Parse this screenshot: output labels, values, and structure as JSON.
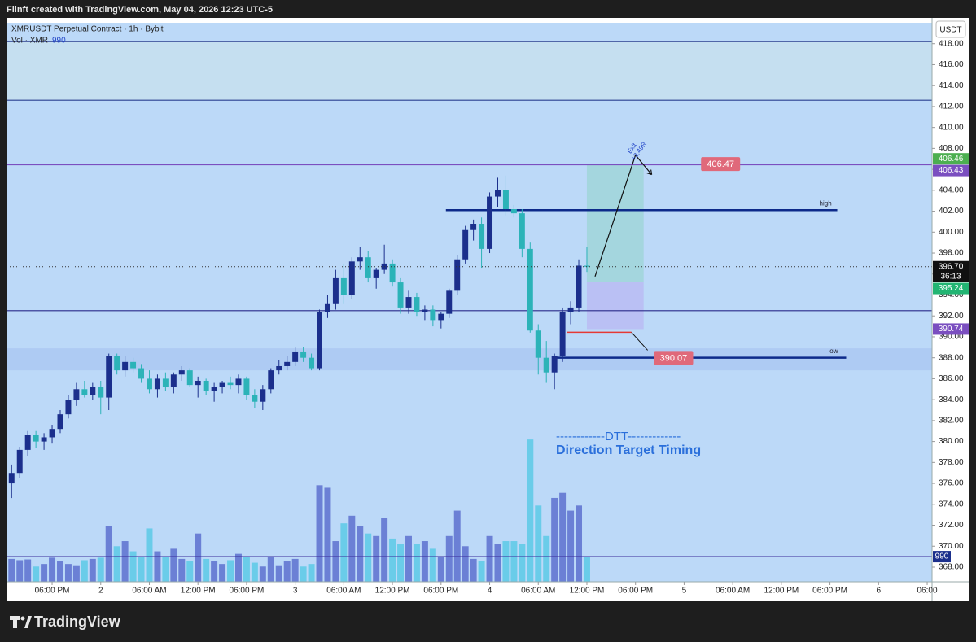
{
  "chart_data": {
    "type": "candlestick",
    "header": "Filnft created with TradingView.com, May 04, 2026 12:23 UTC-5",
    "symbol": "XMRUSDT Perpetual Contract · 1h · Bybit",
    "volume_name": "Vol · XMR",
    "volume_value": "990",
    "currency": "USDT",
    "brand": "TradingView",
    "text_lines": [
      "------------DTT-------------",
      "Direction Target Timing"
    ],
    "up_color": "#1b2f8c",
    "down_color": "#2cb3b8",
    "volume_up_color": "#5d70cf",
    "volume_down_color": "#5cc9e6",
    "xlim": [
      -5.63,
      108.6
    ],
    "ylim": [
      366.6,
      420.0
    ],
    "volume_lim": [
      0,
      22000
    ],
    "grid": false,
    "xticks": [
      {
        "value": 0,
        "label": "06:00 PM"
      },
      {
        "value": 6,
        "label": "2"
      },
      {
        "value": 12,
        "label": "06:00 AM"
      },
      {
        "value": 18,
        "label": "12:00 PM"
      },
      {
        "value": 24,
        "label": "06:00 PM"
      },
      {
        "value": 30,
        "label": "3"
      },
      {
        "value": 36,
        "label": "06:00 AM"
      },
      {
        "value": 42,
        "label": "12:00 PM"
      },
      {
        "value": 48,
        "label": "06:00 PM"
      },
      {
        "value": 54,
        "label": "4"
      },
      {
        "value": 60,
        "label": "06:00 AM"
      },
      {
        "value": 66,
        "label": "12:00 PM"
      },
      {
        "value": 72,
        "label": "06:00 PM"
      },
      {
        "value": 78,
        "label": "5"
      },
      {
        "value": 84,
        "label": "06:00 AM"
      },
      {
        "value": 90,
        "label": "12:00 PM"
      },
      {
        "value": 96,
        "label": "06:00 PM"
      },
      {
        "value": 102,
        "label": "6"
      },
      {
        "value": 108,
        "label": "06:00"
      }
    ],
    "yticks": [
      {
        "value": 368,
        "label": "368.00"
      },
      {
        "value": 370,
        "label": "370.00"
      },
      {
        "value": 372,
        "label": "372.00"
      },
      {
        "value": 374,
        "label": "374.00"
      },
      {
        "value": 376,
        "label": "376.00"
      },
      {
        "value": 378,
        "label": "378.00"
      },
      {
        "value": 380,
        "label": "380.00"
      },
      {
        "value": 382,
        "label": "382.00"
      },
      {
        "value": 384,
        "label": "384.00"
      },
      {
        "value": 386,
        "label": "386.00"
      },
      {
        "value": 388,
        "label": "388.00"
      },
      {
        "value": 390,
        "label": "390.00"
      },
      {
        "value": 392,
        "label": "392.00"
      },
      {
        "value": 394,
        "label": "394.00"
      },
      {
        "value": 396,
        "label": "396.00"
      },
      {
        "value": 398,
        "label": "398.00"
      },
      {
        "value": 400,
        "label": "400.00"
      },
      {
        "value": 402,
        "label": "402.00"
      },
      {
        "value": 404,
        "label": "404.00"
      },
      {
        "value": 406,
        "label": "406.00"
      },
      {
        "value": 408,
        "label": "408.00"
      },
      {
        "value": 410,
        "label": "410.00"
      },
      {
        "value": 412,
        "label": "412.00"
      },
      {
        "value": 414,
        "label": "414.00"
      },
      {
        "value": 416,
        "label": "416.00"
      },
      {
        "value": 418,
        "label": "418.00"
      }
    ],
    "x": [
      -5,
      -4,
      -3,
      -2,
      -1,
      0,
      1,
      2,
      3,
      4,
      5,
      6,
      7,
      8,
      9,
      10,
      11,
      12,
      13,
      14,
      15,
      16,
      17,
      18,
      19,
      20,
      21,
      22,
      23,
      24,
      25,
      26,
      27,
      28,
      29,
      30,
      31,
      32,
      33,
      34,
      35,
      36,
      37,
      38,
      39,
      40,
      41,
      42,
      43,
      44,
      45,
      46,
      47,
      48,
      49,
      50,
      51,
      52,
      53,
      54,
      55,
      56,
      57,
      58,
      59,
      60,
      61,
      62,
      63,
      64,
      65,
      66
    ],
    "open": [
      376.0,
      377.0,
      379.2,
      380.6,
      380.0,
      380.4,
      381.2,
      382.6,
      384.0,
      385.0,
      384.4,
      385.2,
      384.2,
      388.2,
      386.8,
      387.6,
      387.0,
      386.0,
      385.0,
      386.0,
      385.2,
      386.4,
      386.8,
      385.4,
      385.8,
      384.8,
      385.2,
      385.6,
      385.4,
      386.0,
      384.4,
      383.8,
      385.0,
      386.8,
      387.2,
      387.6,
      388.6,
      388.0,
      387.0,
      392.4,
      393.2,
      395.6,
      394.0,
      397.2,
      397.6,
      395.6,
      396.4,
      397.0,
      395.2,
      392.8,
      393.8,
      392.4,
      392.6,
      391.6,
      392.2,
      394.4,
      397.4,
      400.2,
      400.8,
      398.4,
      403.4,
      404.0,
      402.2,
      401.8,
      398.4,
      390.6,
      388.0,
      386.6,
      388.2,
      392.4,
      392.8,
      396.8
    ],
    "high": [
      377.8,
      379.5,
      381.0,
      381.0,
      380.8,
      381.6,
      383.0,
      384.4,
      385.6,
      385.8,
      385.6,
      385.8,
      388.4,
      388.4,
      388.2,
      388.0,
      387.4,
      386.8,
      386.4,
      386.6,
      386.6,
      387.2,
      387.0,
      386.2,
      386.0,
      385.6,
      385.8,
      386.2,
      386.4,
      386.2,
      385.0,
      385.4,
      387.0,
      387.8,
      388.2,
      389.0,
      389.0,
      388.4,
      392.6,
      394.0,
      396.4,
      397.0,
      397.6,
      398.6,
      398.2,
      396.6,
      398.8,
      397.4,
      395.6,
      394.4,
      394.2,
      393.0,
      393.0,
      392.4,
      394.6,
      397.8,
      400.6,
      401.2,
      401.4,
      403.8,
      405.2,
      405.4,
      402.6,
      402.2,
      399.0,
      391.2,
      389.6,
      388.4,
      392.8,
      393.4,
      397.4,
      398.6
    ],
    "low": [
      374.6,
      376.5,
      378.6,
      379.4,
      379.2,
      379.8,
      380.8,
      382.2,
      383.4,
      384.2,
      384.0,
      382.6,
      383.0,
      386.4,
      386.2,
      386.6,
      385.6,
      384.6,
      384.2,
      384.8,
      384.6,
      385.8,
      385.2,
      384.2,
      384.4,
      383.8,
      384.6,
      385.0,
      384.6,
      384.0,
      383.2,
      383.0,
      384.6,
      386.4,
      386.8,
      387.2,
      387.6,
      386.8,
      386.8,
      391.8,
      392.6,
      393.2,
      393.6,
      396.4,
      395.2,
      394.6,
      396.0,
      394.8,
      392.2,
      392.2,
      392.0,
      391.6,
      391.0,
      390.8,
      391.8,
      394.0,
      397.0,
      399.2,
      396.6,
      398.0,
      402.4,
      401.6,
      401.4,
      397.6,
      390.4,
      386.4,
      385.6,
      385.0,
      387.6,
      391.2,
      392.4,
      396.2
    ],
    "close": [
      377.0,
      379.2,
      380.6,
      380.0,
      380.4,
      381.2,
      382.6,
      384.0,
      385.0,
      384.4,
      385.2,
      384.2,
      388.2,
      386.8,
      387.6,
      387.0,
      386.0,
      385.0,
      386.0,
      385.2,
      386.4,
      386.8,
      385.4,
      385.8,
      384.8,
      385.2,
      385.6,
      385.4,
      386.0,
      384.4,
      383.8,
      385.0,
      386.8,
      387.2,
      387.6,
      388.6,
      388.0,
      387.0,
      392.4,
      393.2,
      395.6,
      394.0,
      397.2,
      397.6,
      395.6,
      396.4,
      397.0,
      395.2,
      392.8,
      393.8,
      392.4,
      392.6,
      391.6,
      392.2,
      394.4,
      397.4,
      400.2,
      400.8,
      398.4,
      403.4,
      404.0,
      402.2,
      401.8,
      398.4,
      390.6,
      388.0,
      386.6,
      388.2,
      392.4,
      392.8,
      396.8,
      396.7
    ],
    "volume": [
      900,
      850,
      880,
      600,
      700,
      950,
      800,
      700,
      650,
      850,
      900,
      950,
      2200,
      1400,
      1600,
      1200,
      1000,
      2100,
      1200,
      1000,
      1300,
      900,
      800,
      1900,
      900,
      800,
      700,
      850,
      1100,
      1000,
      750,
      600,
      1000,
      650,
      800,
      900,
      600,
      700,
      3800,
      3700,
      1600,
      2300,
      2600,
      2200,
      1900,
      1800,
      2500,
      1700,
      1500,
      1800,
      1500,
      1600,
      1300,
      1000,
      1800,
      2800,
      1400,
      900,
      800,
      1800,
      1500,
      1600,
      1600,
      1500,
      5600,
      3000,
      1800,
      3300,
      3500,
      2800,
      3000,
      990
    ],
    "zones": [
      {
        "from": 412.6,
        "to": 418.2,
        "color": "#c5dff0"
      },
      {
        "from": 386.8,
        "to": 388.9,
        "color": "#aecbf3"
      }
    ],
    "levels": [
      {
        "value": 418.2,
        "color": "#2a3f8f"
      },
      {
        "value": 412.6,
        "color": "#2a3f8f"
      },
      {
        "value": 406.43,
        "color": "#7b4fc0"
      },
      {
        "value": 402.1,
        "color": "#0d2a8a",
        "from": 48.6,
        "to": 96.9,
        "label": "high"
      },
      {
        "value": 392.5,
        "color": "#2a2a8a"
      },
      {
        "value": 388.0,
        "color": "#0d2a8a",
        "from": 62.0,
        "to": 98.0,
        "label": "low"
      }
    ],
    "position": {
      "start": 66,
      "end": 73,
      "entry": 395.24,
      "target": 406.43,
      "stop": 390.74
    },
    "trade_labels": [
      {
        "value": 406.47,
        "label": "406.47",
        "x": 82.5
      },
      {
        "value": 390.07,
        "label": "390.07",
        "x": 76.7
      }
    ],
    "exit_text": [
      "Exit",
      "+2.49R"
    ],
    "price_tags": [
      {
        "value": 406.46,
        "label": "406.46",
        "color": "#4caf50"
      },
      {
        "value": 406.43,
        "label": "406.43",
        "color": "#7b4fc0"
      },
      {
        "value": 396.7,
        "label": "396.70",
        "color": "#111111",
        "countdown": "36:13"
      },
      {
        "value": 395.24,
        "label": "395.24",
        "color": "#22b573"
      },
      {
        "value": 390.74,
        "label": "390.74",
        "color": "#7b4fc0"
      }
    ],
    "volume_tag": {
      "value": 990,
      "label": "990",
      "color": "#1b2f8c"
    }
  }
}
